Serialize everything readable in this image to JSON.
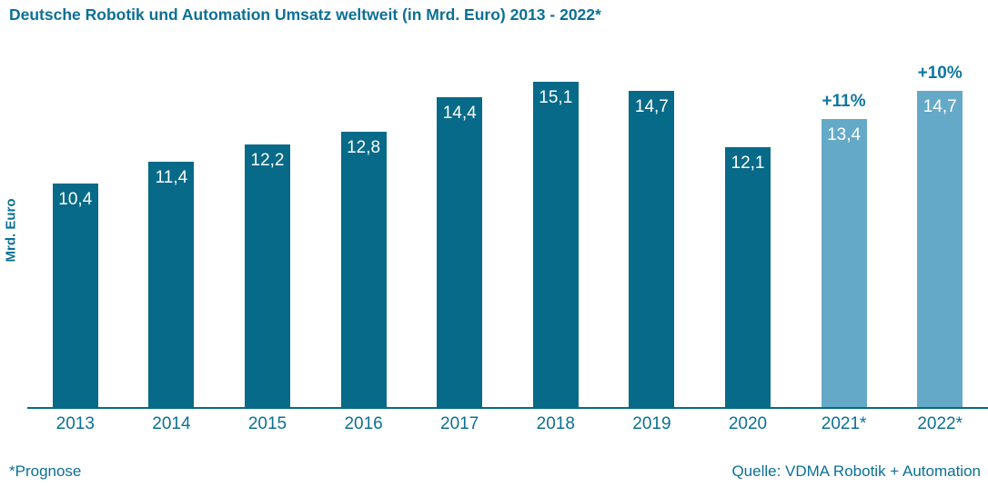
{
  "title": "Deutsche Robotik und Automation Umsatz weltweit (in Mrd. Euro) 2013 - 2022*",
  "footer": {
    "left_note": "*Prognose",
    "source": "Quelle: VDMA Robotik + Automation"
  },
  "colors": {
    "bar": "#076a88",
    "bar_forecast": "#64aac8",
    "text": "#0b7095",
    "annotation": "#0e76a2",
    "label_on_bar": "#ffffff"
  },
  "chart_data": {
    "type": "bar",
    "title": "Deutsche Robotik und Automation Umsatz weltweit (in Mrd. Euro) 2013 - 2022*",
    "xlabel": "",
    "ylabel": "Mrd. Euro",
    "categories": [
      "2013",
      "2014",
      "2015",
      "2016",
      "2017",
      "2018",
      "2019",
      "2020",
      "2021*",
      "2022*"
    ],
    "values": [
      10.4,
      11.4,
      12.2,
      12.8,
      14.4,
      15.1,
      14.7,
      12.1,
      13.4,
      14.7
    ],
    "value_labels": [
      "10,4",
      "11,4",
      "12,2",
      "12,8",
      "14,4",
      "15,1",
      "14,7",
      "12,1",
      "13,4",
      "14,7"
    ],
    "forecast_flags": [
      false,
      false,
      false,
      false,
      false,
      false,
      false,
      false,
      true,
      true
    ],
    "growth_annotations": [
      "",
      "",
      "",
      "",
      "",
      "",
      "",
      "",
      "+11%",
      "+10%"
    ],
    "ylim": [
      0,
      16
    ],
    "grid": false,
    "legend": false,
    "footnote": "*Prognose",
    "source": "Quelle: VDMA Robotik + Automation"
  }
}
